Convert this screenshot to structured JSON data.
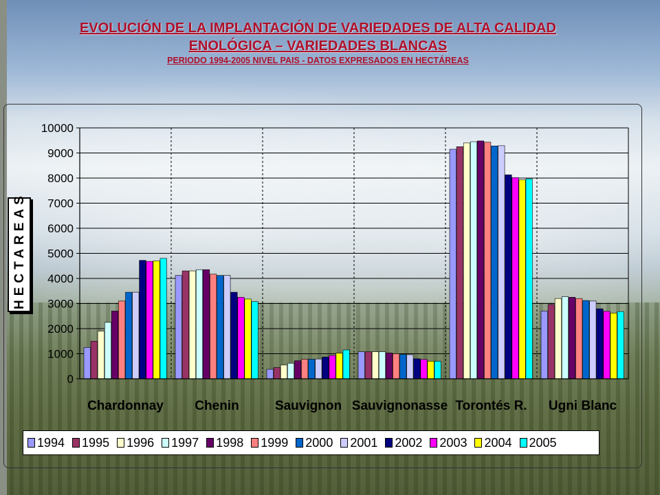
{
  "header": {
    "title_line1": "EVOLUCIÓN DE LA IMPLANTACIÓN DE VARIEDADES DE ALTA CALIDAD",
    "title_line2": "ENOLÓGICA – VARIEDADES BLANCAS",
    "subtitle": "PERIODO 1994-2005 NIVEL PAIS  - DATOS EXPRESADOS EN HECTÁREAS"
  },
  "chart_data": {
    "type": "bar",
    "ylabel": "HECTAREAS",
    "ylim": [
      0,
      10000
    ],
    "yticks": [
      "0",
      "1000",
      "2000",
      "3000",
      "4000",
      "5000",
      "6000",
      "7000",
      "8000",
      "9000",
      "10000"
    ],
    "grid": true,
    "legend_position": "bottom",
    "categories": [
      "Chardonnay",
      "Chenin",
      "Sauvignon",
      "Sauvignonasse",
      "Torontés R.",
      "Ugni Blanc"
    ],
    "series": [
      {
        "name": "1994",
        "color": "#9999ff",
        "values": [
          1250,
          4120,
          380,
          1080,
          9150,
          2700
        ]
      },
      {
        "name": "1995",
        "color": "#993366",
        "values": [
          1500,
          4300,
          450,
          1080,
          9250,
          2960
        ]
      },
      {
        "name": "1996",
        "color": "#ffffcc",
        "values": [
          1900,
          4300,
          550,
          1080,
          9400,
          3200
        ]
      },
      {
        "name": "1997",
        "color": "#ccffff",
        "values": [
          2250,
          4350,
          620,
          1080,
          9450,
          3270
        ]
      },
      {
        "name": "1998",
        "color": "#660066",
        "values": [
          2700,
          4350,
          720,
          1030,
          9480,
          3250
        ]
      },
      {
        "name": "1999",
        "color": "#ff8080",
        "values": [
          3100,
          4170,
          780,
          1000,
          9430,
          3200
        ]
      },
      {
        "name": "2000",
        "color": "#0066cc",
        "values": [
          3450,
          4120,
          780,
          970,
          9280,
          3120
        ]
      },
      {
        "name": "2001",
        "color": "#ccccff",
        "values": [
          3450,
          4120,
          790,
          960,
          9290,
          3100
        ]
      },
      {
        "name": "2002",
        "color": "#000080",
        "values": [
          4720,
          3450,
          870,
          800,
          8130,
          2790
        ]
      },
      {
        "name": "2003",
        "color": "#ff00ff",
        "values": [
          4680,
          3250,
          930,
          770,
          8020,
          2690
        ]
      },
      {
        "name": "2004",
        "color": "#ffff00",
        "values": [
          4700,
          3180,
          1020,
          700,
          7930,
          2620
        ]
      },
      {
        "name": "2005",
        "color": "#00ffff",
        "values": [
          4800,
          3080,
          1150,
          700,
          7970,
          2680
        ]
      }
    ]
  }
}
